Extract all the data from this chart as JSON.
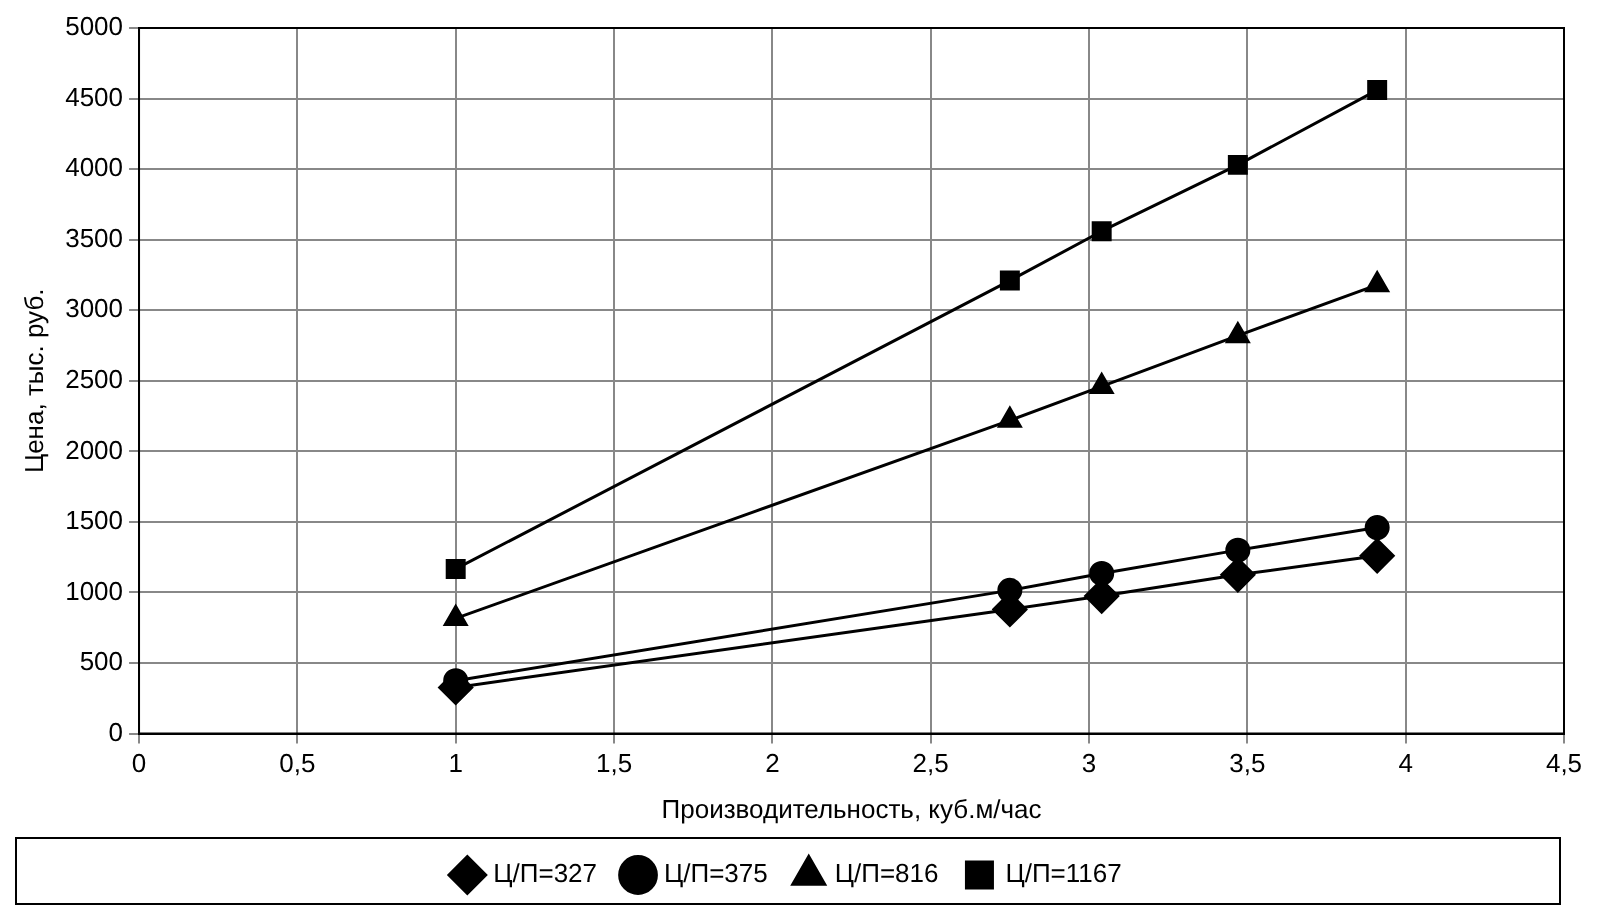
{
  "chart_data": {
    "type": "line",
    "xlabel": "Производительность, куб.м/час",
    "ylabel": "Цена, тыс. руб.",
    "x": [
      1,
      2.75,
      3.04,
      3.47,
      3.91
    ],
    "series": [
      {
        "name": "Ц/П=327",
        "color": "#000000",
        "marker": "diamond",
        "values": [
          327,
          880,
          975,
          1125,
          1260
        ]
      },
      {
        "name": "Ц/П=375",
        "color": "#000000",
        "marker": "circle",
        "values": [
          375,
          1015,
          1135,
          1300,
          1460
        ]
      },
      {
        "name": "Ц/П=816",
        "color": "#000000",
        "marker": "triangle",
        "values": [
          816,
          2220,
          2460,
          2820,
          3180
        ]
      },
      {
        "name": "Ц/П=1167",
        "color": "#000000",
        "marker": "square",
        "values": [
          1167,
          3210,
          3560,
          4030,
          4560
        ]
      }
    ],
    "xlim": [
      0,
      4.5
    ],
    "xticks": [
      0,
      {
        "value": 0.5,
        "label": "0,5"
      },
      1,
      {
        "value": 1.5,
        "label": "1,5"
      },
      2,
      {
        "value": 2.5,
        "label": "2,5"
      },
      3,
      {
        "value": 3.5,
        "label": "3,5"
      },
      4,
      {
        "value": 4.5,
        "label": "4,5"
      }
    ],
    "ylim": [
      0,
      5000
    ],
    "yticks": [
      0,
      500,
      1000,
      1500,
      2000,
      2500,
      3000,
      3500,
      4000,
      4500,
      5000
    ],
    "grid": true,
    "legend": "bottom",
    "line_style": "solid"
  }
}
